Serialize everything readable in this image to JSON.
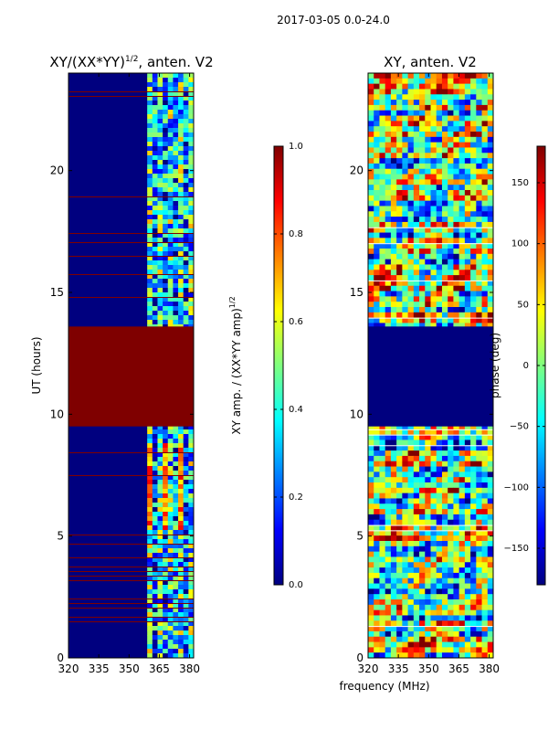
{
  "figure": {
    "suptitle": "2017-03-05 0.0-24.0",
    "shared_xlabel": "frequency (MHz)"
  },
  "colors": {
    "jet_stops": [
      "#00007f",
      "#0000ff",
      "#007fff",
      "#00ffff",
      "#7fff7f",
      "#ffff00",
      "#ff7f00",
      "#ff0000",
      "#7f0000"
    ],
    "saturated_band": "#7f0000",
    "masked_band": "#00007f"
  },
  "chart_data": [
    {
      "type": "heatmap",
      "title_main": "XY/(XX*YY)",
      "title_exp": "1/2",
      "title_tail": ", anten. V2",
      "ylabel": "UT (hours)",
      "xlim": [
        320,
        382
      ],
      "ylim": [
        0,
        24
      ],
      "xticks": [
        320,
        335,
        350,
        365,
        380
      ],
      "yticks": [
        0,
        5,
        10,
        15,
        20
      ],
      "bands": [
        {
          "from_hours": 9.5,
          "to_hours": 13.6,
          "value": 1.0
        }
      ],
      "active_freq_range_mhz": [
        359,
        382
      ]
    },
    {
      "type": "colorbar",
      "label_main": "XY amp. / (XX*YY amp)",
      "label_exp": "1/2",
      "vmin": 0.0,
      "vmax": 1.0,
      "ticks": [
        "0.0",
        "0.2",
        "0.4",
        "0.6",
        "0.8",
        "1.0"
      ]
    },
    {
      "type": "heatmap",
      "title": "XY, anten. V2",
      "xlim": [
        320,
        382
      ],
      "ylim": [
        0,
        24
      ],
      "xticks": [
        320,
        335,
        350,
        365,
        380
      ],
      "yticks": [
        0,
        5,
        10,
        15,
        20
      ],
      "bands": [
        {
          "from_hours": 9.5,
          "to_hours": 13.6,
          "value": -180
        }
      ]
    },
    {
      "type": "colorbar",
      "label": "phase (deg)",
      "vmin": -180,
      "vmax": 180,
      "ticks": [
        "−150",
        "−100",
        "−50",
        "0",
        "50",
        "100",
        "150"
      ],
      "tick_values": [
        -150,
        -100,
        -50,
        0,
        50,
        100,
        150
      ]
    }
  ]
}
